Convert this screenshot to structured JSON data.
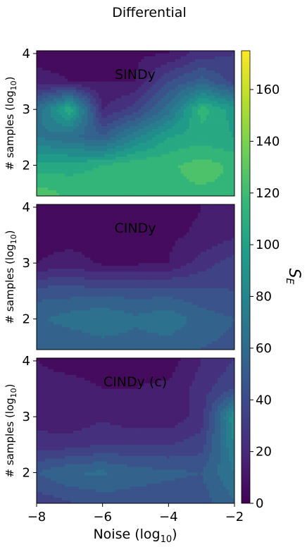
{
  "figure": {
    "title": "Differential",
    "xlabel": "Noise (log",
    "xlabel_sub": "10",
    "xlabel_end": ")",
    "ylabel": "# samples (log",
    "ylabel_sub": "10",
    "ylabel_end": ")",
    "colorbar_label": "S",
    "colorbar_label_sub": "E"
  },
  "chart_data": {
    "type": "heatmap",
    "colormap": "viridis",
    "shared_x": {
      "label": "Noise (log10)",
      "range": [
        -8,
        -2
      ],
      "ticks": [
        -8,
        -6,
        -4,
        -2
      ],
      "tick_labels": [
        "−8",
        "−6",
        "−4",
        "−2"
      ]
    },
    "colorbar": {
      "label": "SE",
      "range": [
        0,
        175
      ],
      "ticks": [
        0,
        20,
        40,
        60,
        80,
        100,
        120,
        140,
        160
      ],
      "tick_labels": [
        "0",
        "20",
        "40",
        "60",
        "80",
        "100",
        "120",
        "140",
        "160"
      ]
    },
    "y_range": [
      1.45,
      4.05
    ],
    "y_ticks": [
      2,
      3,
      4
    ],
    "y_tick_labels": [
      "2",
      "3",
      "4"
    ],
    "contour_levels": [
      10,
      20,
      30,
      40,
      50,
      60,
      70,
      80,
      90,
      100,
      110,
      120,
      130
    ],
    "panels": [
      {
        "label": "SINDy",
        "x": [
          -8,
          -7,
          -6,
          -5,
          -4,
          -3,
          -2
        ],
        "y": [
          1.5,
          2.0,
          2.5,
          3.0,
          3.5,
          4.0
        ],
        "z": [
          [
            125,
            118,
            118,
            118,
            118,
            118,
            118
          ],
          [
            105,
            105,
            110,
            118,
            118,
            125,
            118
          ],
          [
            70,
            62,
            52,
            78,
            100,
            105,
            100
          ],
          [
            62,
            110,
            20,
            35,
            65,
            115,
            95
          ],
          [
            15,
            10,
            10,
            10,
            40,
            55,
            35
          ],
          [
            5,
            5,
            5,
            8,
            10,
            25,
            30
          ]
        ]
      },
      {
        "label": "CINDy",
        "x": [
          -8,
          -7,
          -6,
          -5,
          -4,
          -3,
          -2
        ],
        "y": [
          1.5,
          2.0,
          2.5,
          3.0,
          3.5,
          4.0
        ],
        "z": [
          [
            50,
            50,
            55,
            55,
            55,
            50,
            48
          ],
          [
            58,
            65,
            70,
            62,
            68,
            55,
            50
          ],
          [
            45,
            45,
            45,
            45,
            45,
            42,
            40
          ],
          [
            10,
            15,
            8,
            8,
            10,
            25,
            35
          ],
          [
            5,
            5,
            5,
            5,
            8,
            12,
            18
          ],
          [
            3,
            3,
            3,
            3,
            5,
            10,
            15
          ]
        ]
      },
      {
        "label": "CINDy (c)",
        "x": [
          -8,
          -7,
          -6,
          -5,
          -4,
          -3,
          -2
        ],
        "y": [
          1.5,
          2.0,
          2.5,
          3.0,
          3.5,
          4.0
        ],
        "z": [
          [
            35,
            40,
            45,
            45,
            45,
            45,
            60
          ],
          [
            50,
            60,
            62,
            55,
            52,
            50,
            70
          ],
          [
            25,
            25,
            30,
            30,
            30,
            35,
            80
          ],
          [
            15,
            12,
            18,
            12,
            12,
            25,
            90
          ],
          [
            12,
            12,
            10,
            10,
            12,
            25,
            40
          ],
          [
            10,
            8,
            8,
            8,
            5,
            20,
            30
          ]
        ]
      }
    ]
  }
}
